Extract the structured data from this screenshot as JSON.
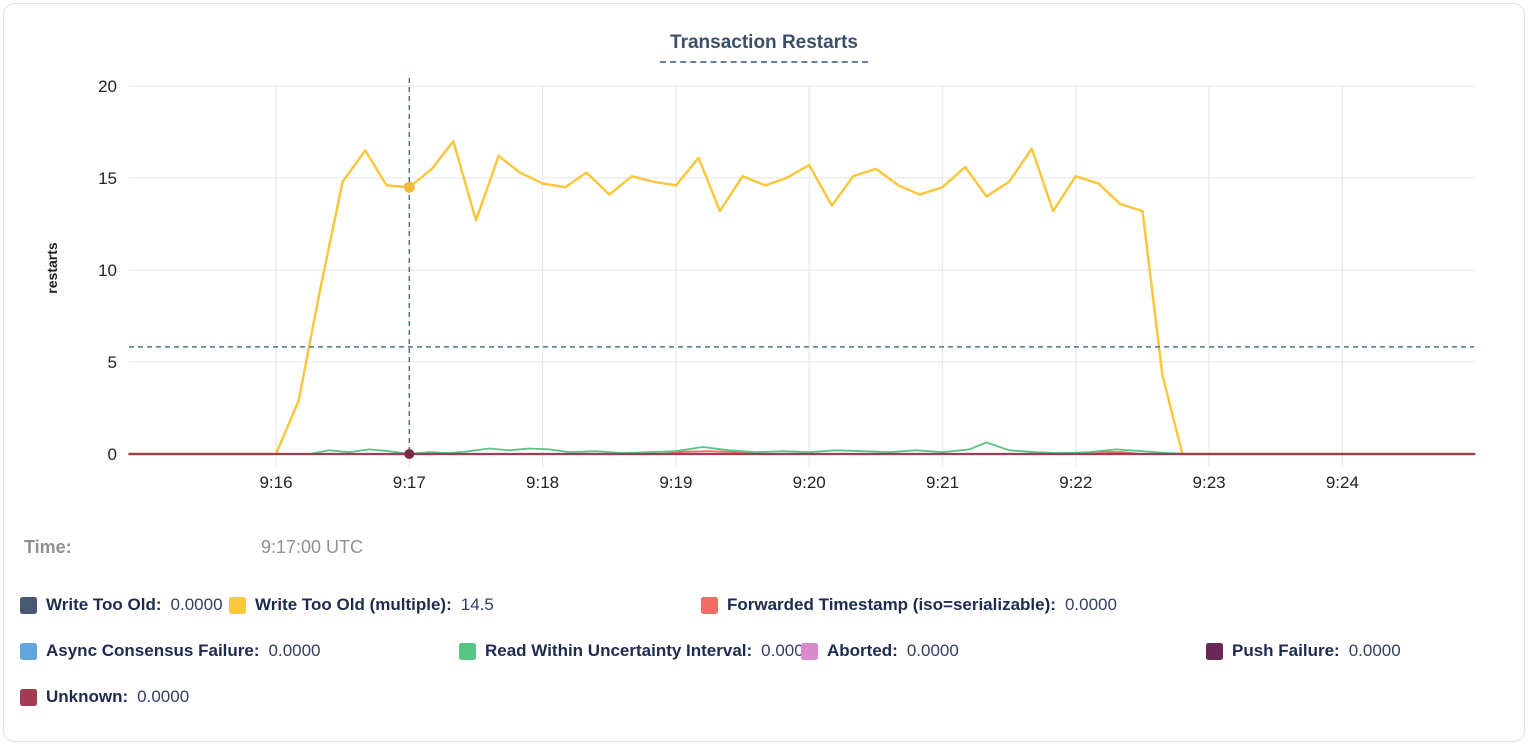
{
  "chart_data": {
    "type": "line",
    "title": "Transaction Restarts",
    "ylabel": "restarts",
    "ylim": [
      0,
      20
    ],
    "yticks": [
      0,
      5,
      10,
      15,
      20
    ],
    "xticks": [
      {
        "t": 0,
        "label": "9:16"
      },
      {
        "t": 1,
        "label": "9:17"
      },
      {
        "t": 2,
        "label": "9:18"
      },
      {
        "t": 3,
        "label": "9:19"
      },
      {
        "t": 4,
        "label": "9:20"
      },
      {
        "t": 5,
        "label": "9:21"
      },
      {
        "t": 6,
        "label": "9:22"
      },
      {
        "t": 7,
        "label": "9:23"
      },
      {
        "t": 8,
        "label": "9:24"
      }
    ],
    "grid": true,
    "legend_position": "bottom",
    "hover": {
      "time_label": "Time:",
      "time_value": "9:17:00 UTC",
      "t": 1.0,
      "hline_value": 5.82,
      "crosshair_color": "#53738F",
      "dots": [
        {
          "value": 14.5,
          "color": "#F0BC3B",
          "r": 5.5
        },
        {
          "value": 0,
          "color": "#7A2B3F",
          "r": 5
        }
      ]
    },
    "series": [
      {
        "name": "Write Too Old",
        "color": "#475872",
        "value": "0.0000",
        "points": [
          [
            -1.1,
            0
          ],
          [
            8.99,
            0
          ]
        ]
      },
      {
        "name": "Write Too Old (multiple)",
        "color": "#FAC73F",
        "value": "14.5",
        "points": [
          [
            -1.1,
            0
          ],
          [
            0,
            0
          ],
          [
            0.17,
            2.9
          ],
          [
            0.33,
            8.9
          ],
          [
            0.5,
            14.8
          ],
          [
            0.67,
            16.5
          ],
          [
            0.83,
            14.6
          ],
          [
            1,
            14.5
          ],
          [
            1.17,
            15.5
          ],
          [
            1.33,
            17
          ],
          [
            1.5,
            12.7
          ],
          [
            1.67,
            16.2
          ],
          [
            1.83,
            15.3
          ],
          [
            2,
            14.7
          ],
          [
            2.17,
            14.5
          ],
          [
            2.33,
            15.3
          ],
          [
            2.5,
            14.1
          ],
          [
            2.67,
            15.1
          ],
          [
            2.83,
            14.8
          ],
          [
            3,
            14.6
          ],
          [
            3.17,
            16.1
          ],
          [
            3.33,
            13.2
          ],
          [
            3.5,
            15.1
          ],
          [
            3.67,
            14.6
          ],
          [
            3.83,
            15.0
          ],
          [
            4,
            15.7
          ],
          [
            4.17,
            13.5
          ],
          [
            4.33,
            15.1
          ],
          [
            4.5,
            15.5
          ],
          [
            4.67,
            14.6
          ],
          [
            4.83,
            14.1
          ],
          [
            5,
            14.5
          ],
          [
            5.17,
            15.6
          ],
          [
            5.33,
            14.0
          ],
          [
            5.5,
            14.8
          ],
          [
            5.67,
            16.6
          ],
          [
            5.83,
            13.2
          ],
          [
            6,
            15.1
          ],
          [
            6.17,
            14.7
          ],
          [
            6.33,
            13.6
          ],
          [
            6.5,
            13.2
          ],
          [
            6.65,
            4.3
          ],
          [
            6.8,
            0
          ],
          [
            8.99,
            0
          ]
        ]
      },
      {
        "name": "Forwarded Timestamp (iso=serializable)",
        "color": "#EC6F63",
        "value": "0.0000",
        "points": [
          [
            -1.1,
            0
          ],
          [
            2.9,
            0
          ],
          [
            3.05,
            0.12
          ],
          [
            3.25,
            0.15
          ],
          [
            3.45,
            0.1
          ],
          [
            3.6,
            0
          ],
          [
            6,
            0
          ],
          [
            6.15,
            0.12
          ],
          [
            6.35,
            0.1
          ],
          [
            6.5,
            0
          ],
          [
            8.99,
            0
          ]
        ]
      },
      {
        "name": "Async Consensus Failure",
        "color": "#61A6DD",
        "value": "0.0000",
        "points": [
          [
            -1.1,
            0
          ],
          [
            8.99,
            0
          ]
        ]
      },
      {
        "name": "Read Within Uncertainty Interval",
        "color": "#57C584",
        "value": "0.0000",
        "points": [
          [
            -1.1,
            0
          ],
          [
            0.25,
            0
          ],
          [
            0.4,
            0.2
          ],
          [
            0.55,
            0.1
          ],
          [
            0.7,
            0.25
          ],
          [
            0.85,
            0.15
          ],
          [
            1,
            0
          ],
          [
            1.15,
            0.1
          ],
          [
            1.3,
            0.05
          ],
          [
            1.45,
            0.15
          ],
          [
            1.6,
            0.3
          ],
          [
            1.75,
            0.2
          ],
          [
            1.9,
            0.3
          ],
          [
            2.05,
            0.25
          ],
          [
            2.2,
            0.1
          ],
          [
            2.4,
            0.15
          ],
          [
            2.6,
            0.05
          ],
          [
            2.8,
            0.1
          ],
          [
            3,
            0.15
          ],
          [
            3.2,
            0.38
          ],
          [
            3.4,
            0.2
          ],
          [
            3.6,
            0.1
          ],
          [
            3.8,
            0.15
          ],
          [
            4,
            0.1
          ],
          [
            4.2,
            0.2
          ],
          [
            4.4,
            0.15
          ],
          [
            4.6,
            0.1
          ],
          [
            4.8,
            0.2
          ],
          [
            5,
            0.1
          ],
          [
            5.2,
            0.25
          ],
          [
            5.33,
            0.63
          ],
          [
            5.5,
            0.2
          ],
          [
            5.7,
            0.1
          ],
          [
            5.9,
            0.05
          ],
          [
            6.1,
            0.1
          ],
          [
            6.3,
            0.25
          ],
          [
            6.5,
            0.15
          ],
          [
            6.7,
            0.05
          ],
          [
            6.9,
            0
          ],
          [
            8.99,
            0
          ]
        ]
      },
      {
        "name": "Aborted",
        "color": "#D98BCE",
        "value": "0.0000",
        "points": [
          [
            -1.1,
            0
          ],
          [
            8.99,
            0
          ]
        ]
      },
      {
        "name": "Push Failure",
        "color": "#692858",
        "value": "0.0000",
        "points": [
          [
            -1.1,
            0
          ],
          [
            8.99,
            0
          ]
        ]
      },
      {
        "name": "Unknown",
        "color": "#A23C53",
        "value": "0.0000",
        "points": [
          [
            -1.1,
            0
          ],
          [
            8.99,
            0
          ]
        ]
      }
    ]
  },
  "legend_rows": [
    [
      0,
      1,
      2
    ],
    [
      3,
      4,
      5,
      6
    ],
    [
      7
    ]
  ]
}
